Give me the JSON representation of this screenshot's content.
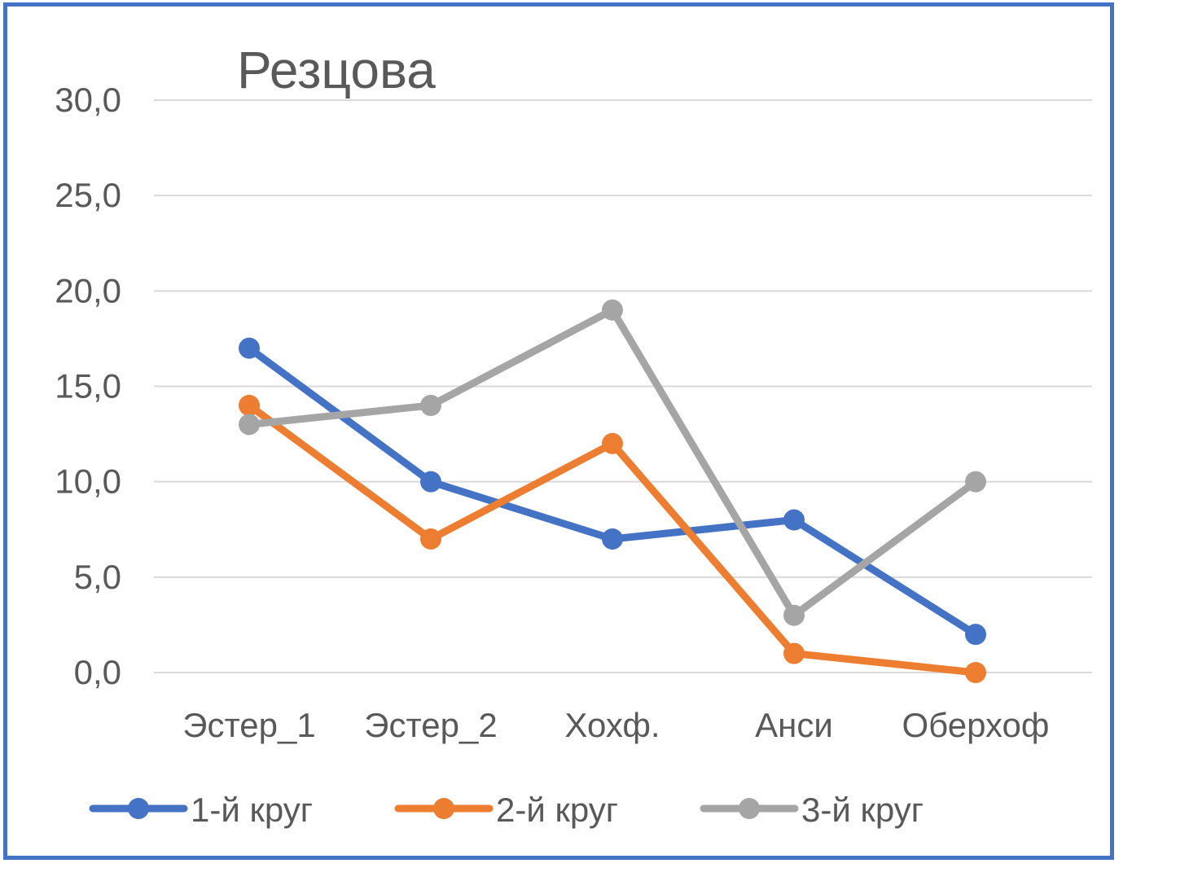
{
  "chart_data": {
    "type": "line",
    "title": "Резцова",
    "xlabel": "",
    "ylabel": "",
    "categories": [
      "Эстер_1",
      "Эстер_2",
      "Хохф.",
      "Анси",
      "Оберхоф"
    ],
    "ylim": [
      0,
      30
    ],
    "yticks": [
      "0,0",
      "5,0",
      "10,0",
      "15,0",
      "20,0",
      "25,0",
      "30,0"
    ],
    "grid": true,
    "legend_position": "bottom",
    "series": [
      {
        "name": "1-й круг",
        "color": "#4472C4",
        "values": [
          17,
          10,
          7,
          8,
          2
        ]
      },
      {
        "name": "2-й круг",
        "color": "#ED7D31",
        "values": [
          14,
          7,
          12,
          1,
          0
        ]
      },
      {
        "name": "3-й круг",
        "color": "#A5A5A5",
        "values": [
          13,
          14,
          19,
          3,
          10
        ]
      }
    ]
  },
  "colors": {
    "frame_border": "#4472C4",
    "gridline": "#D9D9D9",
    "text": "#595959"
  }
}
